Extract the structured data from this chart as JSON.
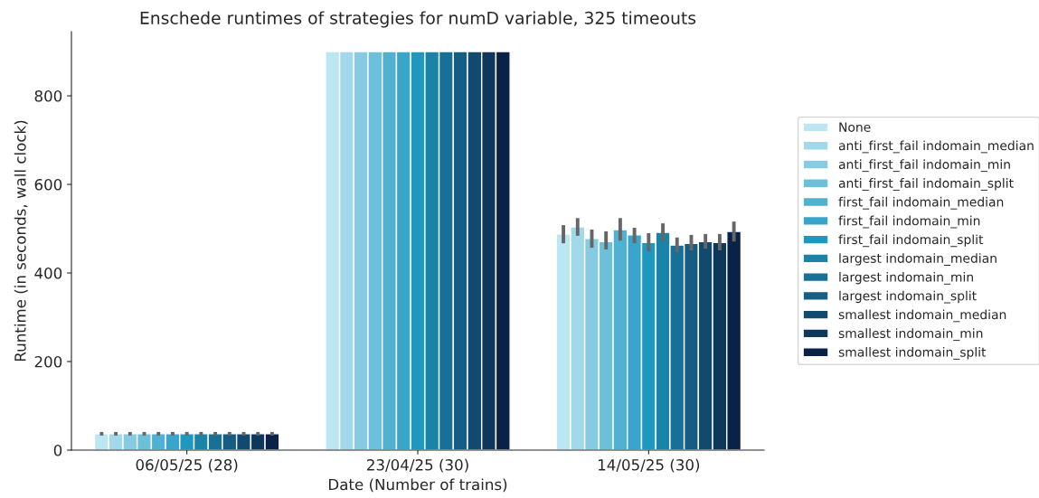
{
  "chart_data": {
    "type": "bar",
    "title": "Enschede runtimes of strategies for numD variable, 325 timeouts",
    "xlabel": "Date (Number of trains)",
    "ylabel": "Runtime (in seconds, wall clock)",
    "categories": [
      "06/05/25 (28)",
      "23/04/25 (30)",
      "14/05/25 (30)"
    ],
    "ylim": [
      0,
      945
    ],
    "yticks": [
      0,
      200,
      400,
      600,
      800
    ],
    "grid": false,
    "legend": "right",
    "series": [
      {
        "name": "None",
        "color": "#bce6f2",
        "values": [
          37,
          900,
          488
        ],
        "errors": [
          [
            33,
            41
          ],
          null,
          [
            467,
            508
          ]
        ]
      },
      {
        "name": "anti_first_fail indomain_median",
        "color": "#a2d9ea",
        "values": [
          37,
          900,
          504
        ],
        "errors": [
          [
            33,
            41
          ],
          null,
          [
            484,
            524
          ]
        ]
      },
      {
        "name": "anti_first_fail indomain_min",
        "color": "#87cbe2",
        "values": [
          37,
          900,
          478
        ],
        "errors": [
          [
            33,
            41
          ],
          null,
          [
            457,
            498
          ]
        ]
      },
      {
        "name": "anti_first_fail indomain_split",
        "color": "#6dc0da",
        "values": [
          37,
          900,
          471
        ],
        "errors": [
          [
            33,
            41
          ],
          null,
          [
            453,
            494
          ]
        ]
      },
      {
        "name": "first_fail indomain_median",
        "color": "#51b1d2",
        "values": [
          37,
          900,
          498
        ],
        "errors": [
          [
            33,
            41
          ],
          null,
          [
            473,
            524
          ]
        ]
      },
      {
        "name": "first_fail indomain_min",
        "color": "#3aa5cb",
        "values": [
          37,
          900,
          486
        ],
        "errors": [
          [
            33,
            41
          ],
          null,
          [
            467,
            502
          ]
        ]
      },
      {
        "name": "first_fail indomain_split",
        "color": "#1f98c0",
        "values": [
          37,
          900,
          469
        ],
        "errors": [
          [
            33,
            41
          ],
          null,
          [
            449,
            490
          ]
        ]
      },
      {
        "name": "largest indomain_median",
        "color": "#1a84a8",
        "values": [
          37,
          900,
          492
        ],
        "errors": [
          [
            33,
            41
          ],
          null,
          [
            471,
            512
          ]
        ]
      },
      {
        "name": "largest indomain_min",
        "color": "#177096",
        "values": [
          37,
          900,
          463
        ],
        "errors": [
          [
            33,
            41
          ],
          null,
          [
            447,
            480
          ]
        ]
      },
      {
        "name": "largest indomain_split",
        "color": "#155d82",
        "values": [
          37,
          900,
          467
        ],
        "errors": [
          [
            33,
            41
          ],
          null,
          [
            451,
            486
          ]
        ]
      },
      {
        "name": "smallest indomain_median",
        "color": "#114a6e",
        "values": [
          37,
          900,
          471
        ],
        "errors": [
          [
            33,
            41
          ],
          null,
          [
            455,
            488
          ]
        ]
      },
      {
        "name": "smallest indomain_min",
        "color": "#0e375c",
        "values": [
          37,
          900,
          469
        ],
        "errors": [
          [
            33,
            41
          ],
          null,
          [
            451,
            488
          ]
        ]
      },
      {
        "name": "smallest indomain_split",
        "color": "#0a2248",
        "values": [
          37,
          900,
          494
        ],
        "errors": [
          [
            33,
            41
          ],
          null,
          [
            471,
            516
          ]
        ]
      }
    ]
  }
}
